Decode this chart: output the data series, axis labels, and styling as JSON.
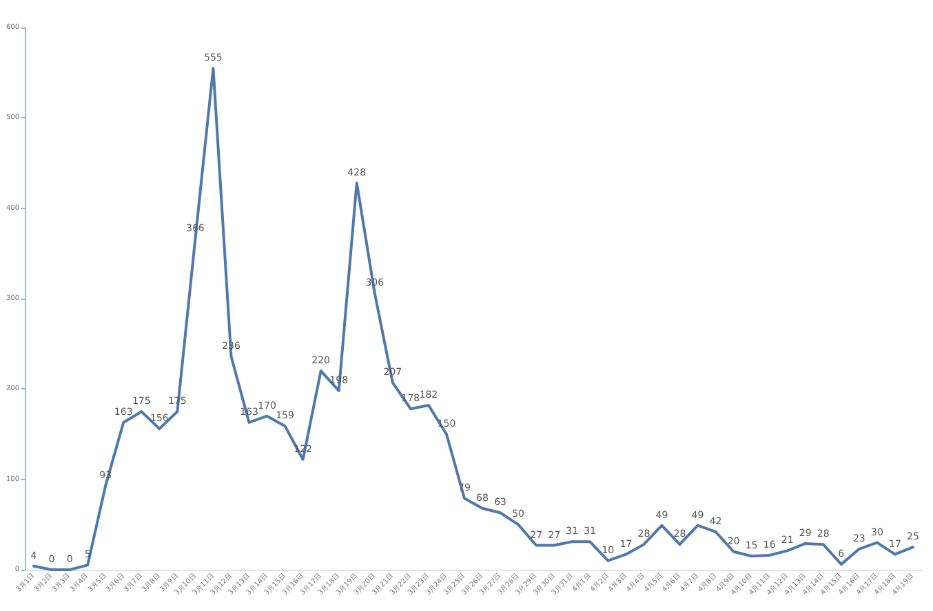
{
  "chart_data": {
    "type": "line",
    "categories": [
      "3月1日",
      "3月2日",
      "3月3日",
      "3月4日",
      "3月5日",
      "3月6日",
      "3月7日",
      "3月8日",
      "3月9日",
      "3月10日",
      "3月11日",
      "3月12日",
      "3月13日",
      "3月14日",
      "3月15日",
      "3月16日",
      "3月17日",
      "3月18日",
      "3月19日",
      "3月20日",
      "3月21日",
      "3月22日",
      "3月23日",
      "3月24日",
      "3月25日",
      "3月26日",
      "3月27日",
      "3月28日",
      "3月29日",
      "3月30日",
      "3月31日",
      "4月1日",
      "4月2日",
      "4月3日",
      "4月4日",
      "4月5日",
      "4月6日",
      "4月7日",
      "4月8日",
      "4月9日",
      "4月10日",
      "4月11日",
      "4月12日",
      "4月13日",
      "4月14日",
      "4月15日",
      "4月16日",
      "4月17日",
      "4月18日",
      "4月19日"
    ],
    "series": [
      {
        "color": "#4f79ab",
        "values": [
          4,
          0,
          0,
          5,
          93,
          163,
          175,
          156,
          175,
          366,
          555,
          236,
          163,
          170,
          159,
          122,
          220,
          198,
          428,
          306,
          207,
          178,
          182,
          150,
          79,
          68,
          63,
          50,
          27,
          27,
          31,
          31,
          10,
          17,
          28,
          49,
          28,
          49,
          42,
          20,
          15,
          16,
          21,
          29,
          28,
          6,
          23,
          30,
          17,
          25
        ]
      }
    ],
    "ylim": [
      0,
      600
    ],
    "yticks": [
      0,
      100,
      200,
      300,
      400,
      500,
      600
    ],
    "grid": false,
    "marker": "none",
    "line_style": "solid",
    "data_labels": true
  }
}
